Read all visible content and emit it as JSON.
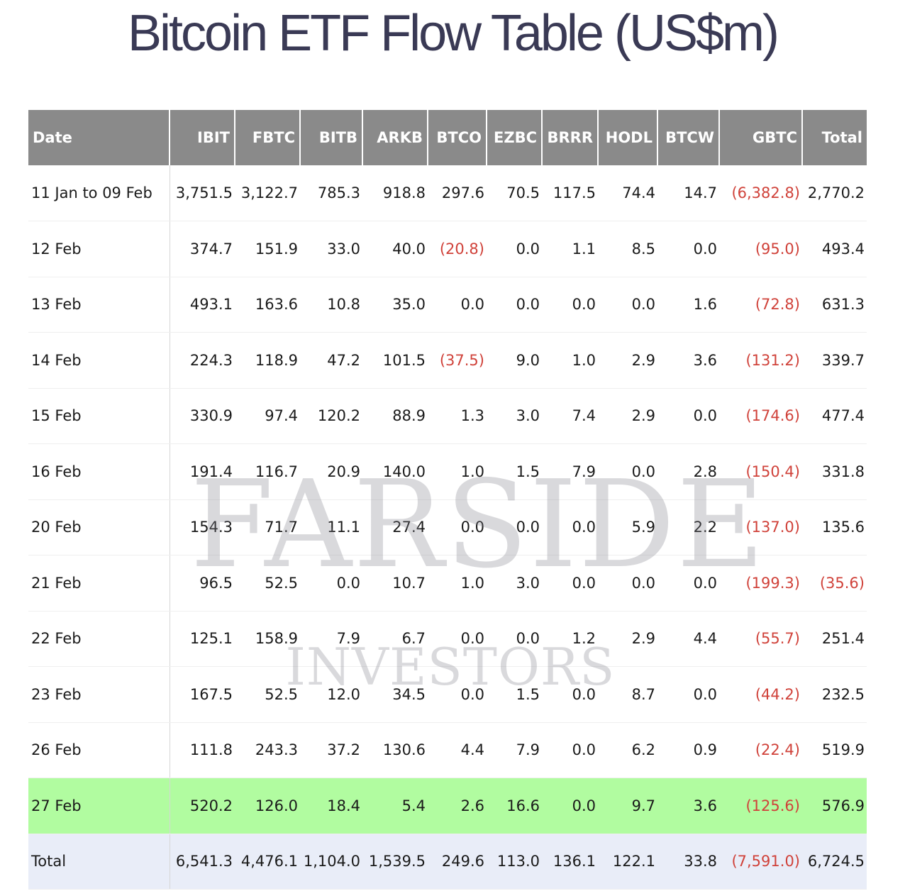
{
  "title": "Bitcoin ETF Flow Table (US$m)",
  "watermark": {
    "main": "FARSIDE",
    "sub": "INVESTORS"
  },
  "colors": {
    "header_bg": "#8a8a8a",
    "negative": "#d0423a",
    "highlight_row": "#b1fca0",
    "total_row": "#e9edf8"
  },
  "table": {
    "headers": [
      "Date",
      "IBIT",
      "FBTC",
      "BITB",
      "ARKB",
      "BTCO",
      "EZBC",
      "BRRR",
      "HODL",
      "BTCW",
      "GBTC",
      "Total"
    ],
    "rows": [
      {
        "date": "11 Jan to 09 Feb",
        "values": [
          "3,751.5",
          "3,122.7",
          "785.3",
          "918.8",
          "297.6",
          "70.5",
          "117.5",
          "74.4",
          "14.7",
          "(6,382.8)",
          "2,770.2"
        ]
      },
      {
        "date": "12 Feb",
        "values": [
          "374.7",
          "151.9",
          "33.0",
          "40.0",
          "(20.8)",
          "0.0",
          "1.1",
          "8.5",
          "0.0",
          "(95.0)",
          "493.4"
        ]
      },
      {
        "date": "13 Feb",
        "values": [
          "493.1",
          "163.6",
          "10.8",
          "35.0",
          "0.0",
          "0.0",
          "0.0",
          "0.0",
          "1.6",
          "(72.8)",
          "631.3"
        ]
      },
      {
        "date": "14 Feb",
        "values": [
          "224.3",
          "118.9",
          "47.2",
          "101.5",
          "(37.5)",
          "9.0",
          "1.0",
          "2.9",
          "3.6",
          "(131.2)",
          "339.7"
        ]
      },
      {
        "date": "15 Feb",
        "values": [
          "330.9",
          "97.4",
          "120.2",
          "88.9",
          "1.3",
          "3.0",
          "7.4",
          "2.9",
          "0.0",
          "(174.6)",
          "477.4"
        ]
      },
      {
        "date": "16 Feb",
        "values": [
          "191.4",
          "116.7",
          "20.9",
          "140.0",
          "1.0",
          "1.5",
          "7.9",
          "0.0",
          "2.8",
          "(150.4)",
          "331.8"
        ]
      },
      {
        "date": "20 Feb",
        "values": [
          "154.3",
          "71.7",
          "11.1",
          "27.4",
          "0.0",
          "0.0",
          "0.0",
          "5.9",
          "2.2",
          "(137.0)",
          "135.6"
        ]
      },
      {
        "date": "21 Feb",
        "values": [
          "96.5",
          "52.5",
          "0.0",
          "10.7",
          "1.0",
          "3.0",
          "0.0",
          "0.0",
          "0.0",
          "(199.3)",
          "(35.6)"
        ]
      },
      {
        "date": "22 Feb",
        "values": [
          "125.1",
          "158.9",
          "7.9",
          "6.7",
          "0.0",
          "0.0",
          "1.2",
          "2.9",
          "4.4",
          "(55.7)",
          "251.4"
        ]
      },
      {
        "date": "23 Feb",
        "values": [
          "167.5",
          "52.5",
          "12.0",
          "34.5",
          "0.0",
          "1.5",
          "0.0",
          "8.7",
          "0.0",
          "(44.2)",
          "232.5"
        ]
      },
      {
        "date": "26 Feb",
        "values": [
          "111.8",
          "243.3",
          "37.2",
          "130.6",
          "4.4",
          "7.9",
          "0.0",
          "6.2",
          "0.9",
          "(22.4)",
          "519.9"
        ]
      },
      {
        "date": "27 Feb",
        "values": [
          "520.2",
          "126.0",
          "18.4",
          "5.4",
          "2.6",
          "16.6",
          "0.0",
          "9.7",
          "3.6",
          "(125.6)",
          "576.9"
        ],
        "highlight": true
      },
      {
        "date": "Total",
        "values": [
          "6,541.3",
          "4,476.1",
          "1,104.0",
          "1,539.5",
          "249.6",
          "113.0",
          "136.1",
          "122.1",
          "33.8",
          "(7,591.0)",
          "6,724.5"
        ],
        "total": true
      }
    ]
  }
}
